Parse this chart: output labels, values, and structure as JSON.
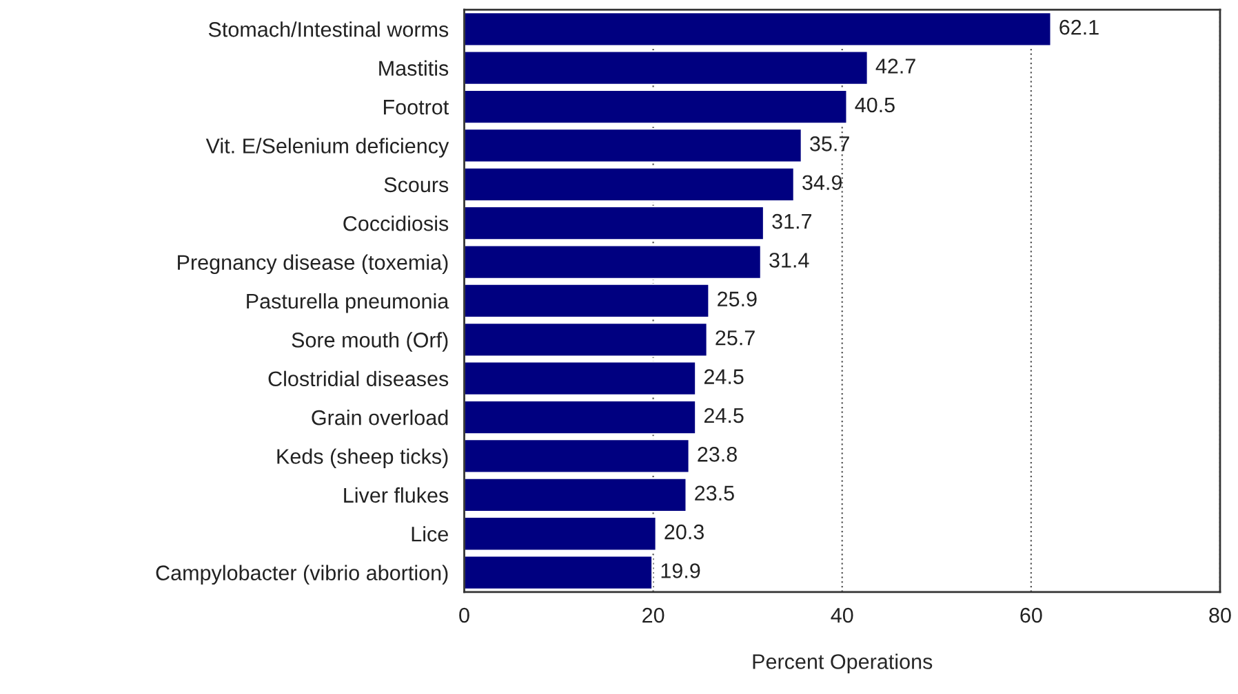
{
  "chart_data": {
    "type": "bar",
    "orientation": "horizontal",
    "xlabel": "Percent Operations",
    "categories": [
      "Stomach/Intestinal worms",
      "Mastitis",
      "Footrot",
      "Vit. E/Selenium deficiency",
      "Scours",
      "Coccidiosis",
      "Pregnancy disease (toxemia)",
      "Pasturella pneumonia",
      "Sore mouth (Orf)",
      "Clostridial diseases",
      "Grain overload",
      "Keds (sheep ticks)",
      "Liver flukes",
      "Lice",
      "Campylobacter (vibrio abortion)"
    ],
    "values": [
      62.1,
      42.7,
      40.5,
      35.7,
      34.9,
      31.7,
      31.4,
      25.9,
      25.7,
      24.5,
      24.5,
      23.8,
      23.5,
      20.3,
      19.9
    ],
    "color": "#000080",
    "xlim": [
      0,
      80
    ],
    "xticks": [
      0,
      20,
      40,
      60,
      80
    ],
    "grid": "x",
    "data_labels": true
  }
}
